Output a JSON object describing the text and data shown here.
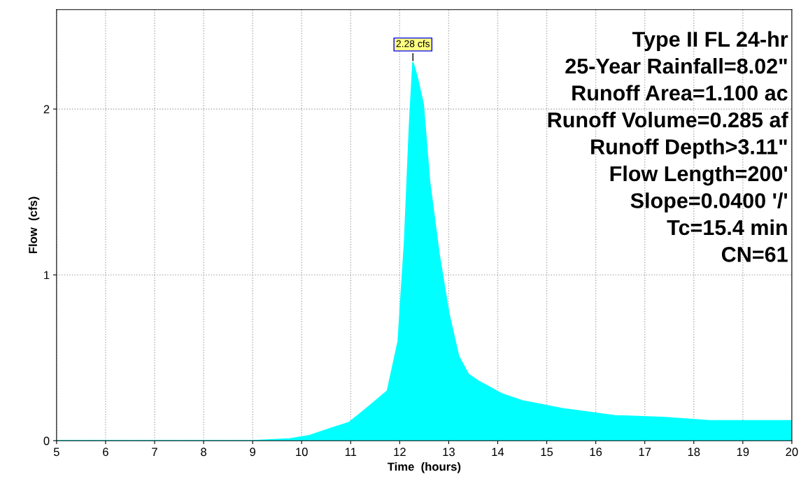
{
  "chart_data": {
    "type": "area",
    "xlabel": "Time  (hours)",
    "ylabel": "Flow  (cfs)",
    "x": [
      5,
      6,
      7,
      8,
      9,
      9.75,
      10.16,
      10.56,
      10.97,
      11.39,
      11.75,
      11.97,
      12.1,
      12.2,
      12.27,
      12.35,
      12.48,
      12.61,
      12.8,
      13.0,
      13.2,
      13.4,
      13.6,
      14.1,
      14.5,
      15.38,
      16.38,
      17.38,
      18.33,
      19.04,
      19.94,
      20
    ],
    "series": [
      {
        "color": "#00ffff",
        "values": [
          0,
          0,
          0,
          0,
          0,
          0.01,
          0.03,
          0.07,
          0.11,
          0.21,
          0.3,
          0.6,
          1.2,
          1.9,
          2.28,
          2.2,
          2.03,
          1.56,
          1.13,
          0.77,
          0.51,
          0.4,
          0.36,
          0.28,
          0.24,
          0.19,
          0.15,
          0.14,
          0.12,
          0.12,
          0.12,
          0.12
        ]
      }
    ],
    "xlim": [
      5,
      20
    ],
    "xticks": [
      5,
      6,
      7,
      8,
      9,
      10,
      11,
      12,
      13,
      14,
      15,
      16,
      17,
      18,
      19,
      20
    ],
    "ylim": [
      0,
      2.6
    ],
    "yticks": [
      0,
      1,
      2
    ],
    "grid": true,
    "legend": false,
    "annotations": [
      {
        "text": "2.28 cfs",
        "x": 12.27,
        "y": 2.28
      },
      "Type II FL 24-hr\n25-Year Rainfall=8.02\"\nRunoff Area=1.100 ac\nRunoff Volume=0.285 af\nRunoff Depth>3.11\"\nFlow Length=200'\nSlope=0.0400 '/'\nTc=15.4 min\nCN=61"
    ]
  }
}
